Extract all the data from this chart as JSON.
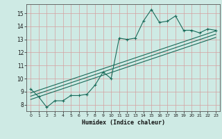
{
  "title": "",
  "xlabel": "Humidex (Indice chaleur)",
  "ylabel": "",
  "bg_color": "#ceeae4",
  "grid_color": "#b8d8d2",
  "line_color": "#1a6b5a",
  "xlim": [
    -0.5,
    23.5
  ],
  "ylim": [
    7.5,
    15.7
  ],
  "xticks": [
    0,
    1,
    2,
    3,
    4,
    5,
    6,
    7,
    8,
    9,
    10,
    11,
    12,
    13,
    14,
    15,
    16,
    17,
    18,
    19,
    20,
    21,
    22,
    23
  ],
  "yticks": [
    8,
    9,
    10,
    11,
    12,
    13,
    14,
    15
  ],
  "series1_x": [
    0,
    1,
    2,
    3,
    4,
    5,
    6,
    7,
    8,
    9,
    10,
    11,
    12,
    13,
    14,
    15,
    16,
    17,
    18,
    19,
    20,
    21,
    22,
    23
  ],
  "series1_y": [
    9.2,
    8.6,
    7.8,
    8.3,
    8.3,
    8.7,
    8.7,
    8.8,
    9.5,
    10.5,
    10.0,
    13.1,
    13.0,
    13.1,
    14.4,
    15.3,
    14.3,
    14.4,
    14.8,
    13.7,
    13.7,
    13.5,
    13.8,
    13.7
  ],
  "series2_x": [
    0,
    23
  ],
  "series2_y": [
    8.9,
    13.65
  ],
  "series3_x": [
    0,
    23
  ],
  "series3_y": [
    8.4,
    13.15
  ],
  "series4_x": [
    0,
    23
  ],
  "series4_y": [
    8.65,
    13.4
  ],
  "figsize": [
    3.2,
    2.0
  ],
  "dpi": 100
}
